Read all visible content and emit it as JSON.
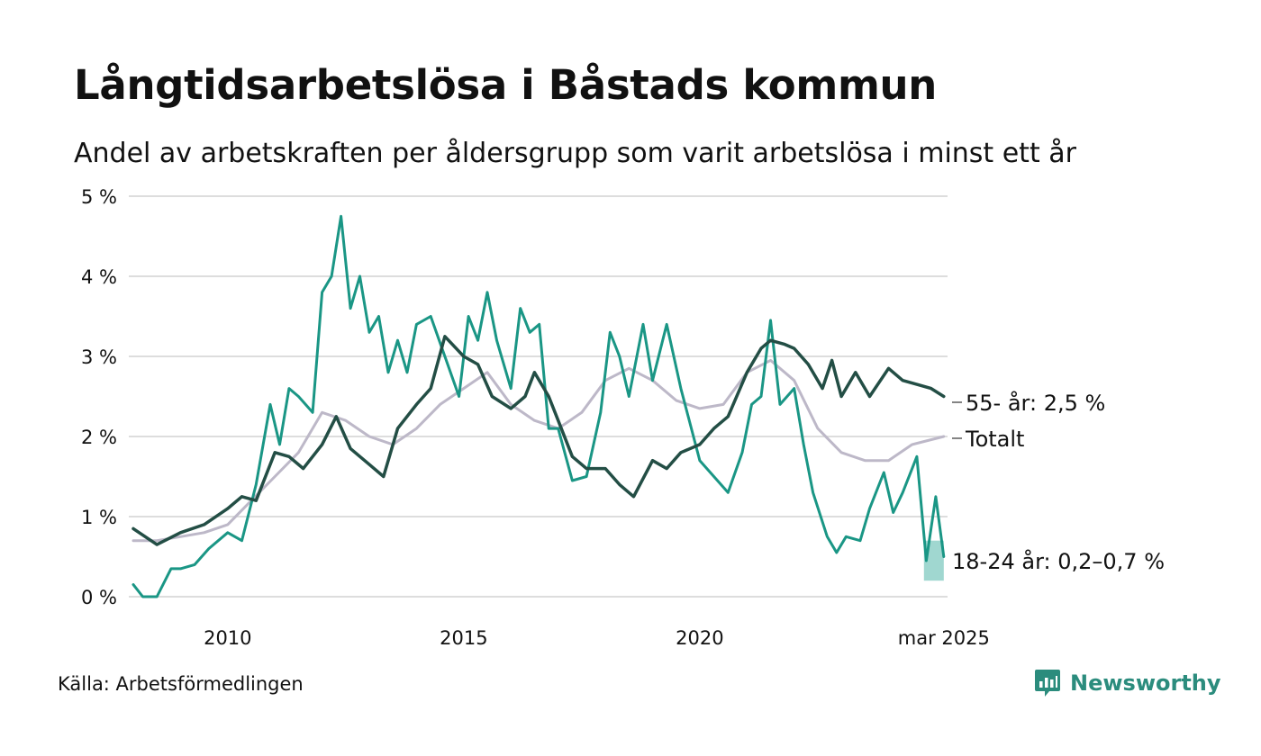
{
  "title": "Långtidsarbetslösa i Båstads kommun",
  "subtitle": "Andel av arbetskraften per åldersgrupp som varit arbetslösa i minst ett år",
  "source": "Källa: Arbetsförmedlingen",
  "brand": {
    "name": "Newsworthy",
    "icon": "newsworthy-logo-icon"
  },
  "colors": {
    "age55": "#234e45",
    "total": "#bdb8c8",
    "age18": "#1a9685",
    "age18_band": "#8fd0c8",
    "grid": "#dddddd"
  },
  "chart_data": {
    "type": "line",
    "xlim": [
      2008.0,
      2025.25
    ],
    "ylim": [
      0,
      5
    ],
    "yticks": [
      {
        "value": 0,
        "label": "0 %"
      },
      {
        "value": 1,
        "label": "1 %"
      },
      {
        "value": 2,
        "label": "2 %"
      },
      {
        "value": 3,
        "label": "3 %"
      },
      {
        "value": 4,
        "label": "4 %"
      },
      {
        "value": 5,
        "label": "5 %"
      }
    ],
    "xticks": [
      {
        "value": 2010,
        "label": "2010"
      },
      {
        "value": 2015,
        "label": "2015"
      },
      {
        "value": 2020,
        "label": "2020"
      },
      {
        "value": 2025.17,
        "label": "mar 2025"
      }
    ],
    "grid": true,
    "series": [
      {
        "key": "total",
        "name": "Totalt",
        "label": "Totalt",
        "points": [
          [
            2008.0,
            0.7
          ],
          [
            2008.5,
            0.7
          ],
          [
            2009.0,
            0.75
          ],
          [
            2009.5,
            0.8
          ],
          [
            2010.0,
            0.9
          ],
          [
            2010.5,
            1.2
          ],
          [
            2011.0,
            1.5
          ],
          [
            2011.5,
            1.8
          ],
          [
            2012.0,
            2.3
          ],
          [
            2012.5,
            2.2
          ],
          [
            2013.0,
            2.0
          ],
          [
            2013.5,
            1.9
          ],
          [
            2014.0,
            2.1
          ],
          [
            2014.5,
            2.4
          ],
          [
            2015.0,
            2.6
          ],
          [
            2015.5,
            2.8
          ],
          [
            2016.0,
            2.4
          ],
          [
            2016.5,
            2.2
          ],
          [
            2017.0,
            2.1
          ],
          [
            2017.5,
            2.3
          ],
          [
            2018.0,
            2.7
          ],
          [
            2018.5,
            2.85
          ],
          [
            2019.0,
            2.7
          ],
          [
            2019.5,
            2.45
          ],
          [
            2020.0,
            2.35
          ],
          [
            2020.5,
            2.4
          ],
          [
            2021.0,
            2.8
          ],
          [
            2021.5,
            2.95
          ],
          [
            2022.0,
            2.7
          ],
          [
            2022.5,
            2.1
          ],
          [
            2023.0,
            1.8
          ],
          [
            2023.5,
            1.7
          ],
          [
            2024.0,
            1.7
          ],
          [
            2024.5,
            1.9
          ],
          [
            2025.17,
            2.0
          ]
        ]
      },
      {
        "key": "age55",
        "name": "55- år",
        "label": "55- år: 2,5 %",
        "points": [
          [
            2008.0,
            0.85
          ],
          [
            2008.5,
            0.65
          ],
          [
            2009.0,
            0.8
          ],
          [
            2009.5,
            0.9
          ],
          [
            2010.0,
            1.1
          ],
          [
            2010.3,
            1.25
          ],
          [
            2010.6,
            1.2
          ],
          [
            2011.0,
            1.8
          ],
          [
            2011.3,
            1.75
          ],
          [
            2011.6,
            1.6
          ],
          [
            2012.0,
            1.9
          ],
          [
            2012.3,
            2.25
          ],
          [
            2012.6,
            1.85
          ],
          [
            2013.0,
            1.65
          ],
          [
            2013.3,
            1.5
          ],
          [
            2013.6,
            2.1
          ],
          [
            2014.0,
            2.4
          ],
          [
            2014.3,
            2.6
          ],
          [
            2014.6,
            3.25
          ],
          [
            2015.0,
            3.0
          ],
          [
            2015.3,
            2.9
          ],
          [
            2015.6,
            2.5
          ],
          [
            2016.0,
            2.35
          ],
          [
            2016.3,
            2.5
          ],
          [
            2016.5,
            2.8
          ],
          [
            2016.8,
            2.5
          ],
          [
            2017.0,
            2.2
          ],
          [
            2017.3,
            1.75
          ],
          [
            2017.6,
            1.6
          ],
          [
            2018.0,
            1.6
          ],
          [
            2018.3,
            1.4
          ],
          [
            2018.6,
            1.25
          ],
          [
            2019.0,
            1.7
          ],
          [
            2019.3,
            1.6
          ],
          [
            2019.6,
            1.8
          ],
          [
            2020.0,
            1.9
          ],
          [
            2020.3,
            2.1
          ],
          [
            2020.6,
            2.25
          ],
          [
            2021.0,
            2.8
          ],
          [
            2021.3,
            3.1
          ],
          [
            2021.5,
            3.2
          ],
          [
            2021.8,
            3.15
          ],
          [
            2022.0,
            3.1
          ],
          [
            2022.3,
            2.9
          ],
          [
            2022.6,
            2.6
          ],
          [
            2022.8,
            2.95
          ],
          [
            2023.0,
            2.5
          ],
          [
            2023.3,
            2.8
          ],
          [
            2023.6,
            2.5
          ],
          [
            2024.0,
            2.85
          ],
          [
            2024.3,
            2.7
          ],
          [
            2024.6,
            2.65
          ],
          [
            2024.9,
            2.6
          ],
          [
            2025.17,
            2.5
          ]
        ]
      },
      {
        "key": "age18",
        "name": "18-24 år",
        "label": "18-24 år: 0,2–0,7 %",
        "points": [
          [
            2008.0,
            0.15
          ],
          [
            2008.2,
            0.0
          ],
          [
            2008.5,
            0.0
          ],
          [
            2008.8,
            0.35
          ],
          [
            2009.0,
            0.35
          ],
          [
            2009.3,
            0.4
          ],
          [
            2009.6,
            0.6
          ],
          [
            2010.0,
            0.8
          ],
          [
            2010.3,
            0.7
          ],
          [
            2010.6,
            1.4
          ],
          [
            2010.9,
            2.4
          ],
          [
            2011.1,
            1.9
          ],
          [
            2011.3,
            2.6
          ],
          [
            2011.5,
            2.5
          ],
          [
            2011.8,
            2.3
          ],
          [
            2012.0,
            3.8
          ],
          [
            2012.2,
            4.0
          ],
          [
            2012.4,
            4.75
          ],
          [
            2012.6,
            3.6
          ],
          [
            2012.8,
            4.0
          ],
          [
            2013.0,
            3.3
          ],
          [
            2013.2,
            3.5
          ],
          [
            2013.4,
            2.8
          ],
          [
            2013.6,
            3.2
          ],
          [
            2013.8,
            2.8
          ],
          [
            2014.0,
            3.4
          ],
          [
            2014.3,
            3.5
          ],
          [
            2014.6,
            3.0
          ],
          [
            2014.9,
            2.5
          ],
          [
            2015.1,
            3.5
          ],
          [
            2015.3,
            3.2
          ],
          [
            2015.5,
            3.8
          ],
          [
            2015.7,
            3.2
          ],
          [
            2016.0,
            2.6
          ],
          [
            2016.2,
            3.6
          ],
          [
            2016.4,
            3.3
          ],
          [
            2016.6,
            3.4
          ],
          [
            2016.8,
            2.1
          ],
          [
            2017.0,
            2.1
          ],
          [
            2017.3,
            1.45
          ],
          [
            2017.6,
            1.5
          ],
          [
            2017.9,
            2.3
          ],
          [
            2018.1,
            3.3
          ],
          [
            2018.3,
            3.0
          ],
          [
            2018.5,
            2.5
          ],
          [
            2018.8,
            3.4
          ],
          [
            2019.0,
            2.7
          ],
          [
            2019.3,
            3.4
          ],
          [
            2019.6,
            2.6
          ],
          [
            2020.0,
            1.7
          ],
          [
            2020.3,
            1.5
          ],
          [
            2020.6,
            1.3
          ],
          [
            2020.9,
            1.8
          ],
          [
            2021.1,
            2.4
          ],
          [
            2021.3,
            2.5
          ],
          [
            2021.5,
            3.45
          ],
          [
            2021.7,
            2.4
          ],
          [
            2022.0,
            2.6
          ],
          [
            2022.2,
            1.9
          ],
          [
            2022.4,
            1.3
          ],
          [
            2022.7,
            0.75
          ],
          [
            2022.9,
            0.55
          ],
          [
            2023.1,
            0.75
          ],
          [
            2023.4,
            0.7
          ],
          [
            2023.6,
            1.1
          ],
          [
            2023.9,
            1.55
          ],
          [
            2024.1,
            1.05
          ],
          [
            2024.3,
            1.3
          ],
          [
            2024.6,
            1.75
          ],
          [
            2024.8,
            0.45
          ],
          [
            2025.0,
            1.25
          ],
          [
            2025.17,
            0.5
          ]
        ],
        "band": {
          "from": 2024.75,
          "to": 2025.17,
          "low": 0.2,
          "high": 0.7
        }
      }
    ]
  }
}
